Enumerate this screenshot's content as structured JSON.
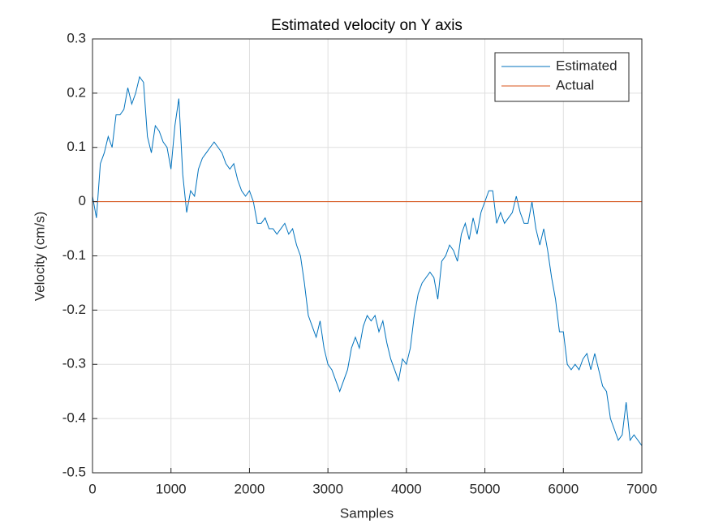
{
  "chart_data": {
    "type": "line",
    "title": "Estimated velocity on Y axis",
    "x_label": "Samples",
    "y_label": "Velocity (cm/s)",
    "xlim": [
      0,
      7000
    ],
    "ylim": [
      -0.5,
      0.3
    ],
    "xticks": [
      0,
      1000,
      2000,
      3000,
      4000,
      5000,
      6000,
      7000
    ],
    "yticks": [
      -0.5,
      -0.4,
      -0.3,
      -0.2,
      -0.1,
      0,
      0.1,
      0.2,
      0.3
    ],
    "grid": true,
    "legend": "upper right",
    "series": [
      {
        "name": "Estimated",
        "color": "#0072BD",
        "x": [
          0,
          50,
          100,
          150,
          200,
          250,
          300,
          350,
          400,
          450,
          500,
          550,
          600,
          650,
          700,
          750,
          800,
          850,
          900,
          950,
          1000,
          1050,
          1100,
          1150,
          1200,
          1250,
          1300,
          1350,
          1400,
          1450,
          1500,
          1550,
          1600,
          1650,
          1700,
          1750,
          1800,
          1850,
          1900,
          1950,
          2000,
          2050,
          2100,
          2150,
          2200,
          2250,
          2300,
          2350,
          2400,
          2450,
          2500,
          2550,
          2600,
          2650,
          2700,
          2750,
          2800,
          2850,
          2900,
          2950,
          3000,
          3050,
          3100,
          3150,
          3200,
          3250,
          3300,
          3350,
          3400,
          3450,
          3500,
          3550,
          3600,
          3650,
          3700,
          3750,
          3800,
          3850,
          3900,
          3950,
          4000,
          4050,
          4100,
          4150,
          4200,
          4250,
          4300,
          4350,
          4400,
          4450,
          4500,
          4550,
          4600,
          4650,
          4700,
          4750,
          4800,
          4850,
          4900,
          4950,
          5000,
          5050,
          5100,
          5150,
          5200,
          5250,
          5300,
          5350,
          5400,
          5450,
          5500,
          5550,
          5600,
          5650,
          5700,
          5750,
          5800,
          5850,
          5900,
          5950,
          6000,
          6050,
          6100,
          6150,
          6200,
          6250,
          6300,
          6350,
          6400,
          6450,
          6500,
          6550,
          6600,
          6650,
          6700,
          6750,
          6800,
          6850,
          6900,
          6950,
          7000
        ],
        "values": [
          0.01,
          -0.03,
          0.07,
          0.09,
          0.12,
          0.1,
          0.16,
          0.16,
          0.17,
          0.21,
          0.18,
          0.2,
          0.23,
          0.22,
          0.12,
          0.09,
          0.14,
          0.13,
          0.11,
          0.1,
          0.06,
          0.14,
          0.19,
          0.05,
          -0.02,
          0.02,
          0.01,
          0.06,
          0.08,
          0.09,
          0.1,
          0.11,
          0.1,
          0.09,
          0.07,
          0.06,
          0.07,
          0.04,
          0.02,
          0.01,
          0.02,
          0.0,
          -0.04,
          -0.04,
          -0.03,
          -0.05,
          -0.05,
          -0.06,
          -0.05,
          -0.04,
          -0.06,
          -0.05,
          -0.08,
          -0.1,
          -0.15,
          -0.21,
          -0.23,
          -0.25,
          -0.22,
          -0.27,
          -0.3,
          -0.31,
          -0.33,
          -0.35,
          -0.33,
          -0.31,
          -0.27,
          -0.25,
          -0.27,
          -0.23,
          -0.21,
          -0.22,
          -0.21,
          -0.24,
          -0.22,
          -0.26,
          -0.29,
          -0.31,
          -0.33,
          -0.29,
          -0.3,
          -0.27,
          -0.21,
          -0.17,
          -0.15,
          -0.14,
          -0.13,
          -0.14,
          -0.18,
          -0.11,
          -0.1,
          -0.08,
          -0.09,
          -0.11,
          -0.06,
          -0.04,
          -0.07,
          -0.03,
          -0.06,
          -0.02,
          0.0,
          0.02,
          0.02,
          -0.04,
          -0.02,
          -0.04,
          -0.03,
          -0.02,
          0.01,
          -0.02,
          -0.04,
          -0.04,
          0.0,
          -0.05,
          -0.08,
          -0.05,
          -0.09,
          -0.14,
          -0.18,
          -0.24,
          -0.24,
          -0.3,
          -0.31,
          -0.3,
          -0.31,
          -0.29,
          -0.28,
          -0.31,
          -0.28,
          -0.31,
          -0.34,
          -0.35,
          -0.4,
          -0.42,
          -0.44,
          -0.43,
          -0.37,
          -0.44,
          -0.43,
          -0.44,
          -0.45
        ]
      },
      {
        "name": "Actual",
        "color": "#D95319",
        "x": [
          0,
          7000
        ],
        "values": [
          0,
          0
        ]
      }
    ]
  }
}
